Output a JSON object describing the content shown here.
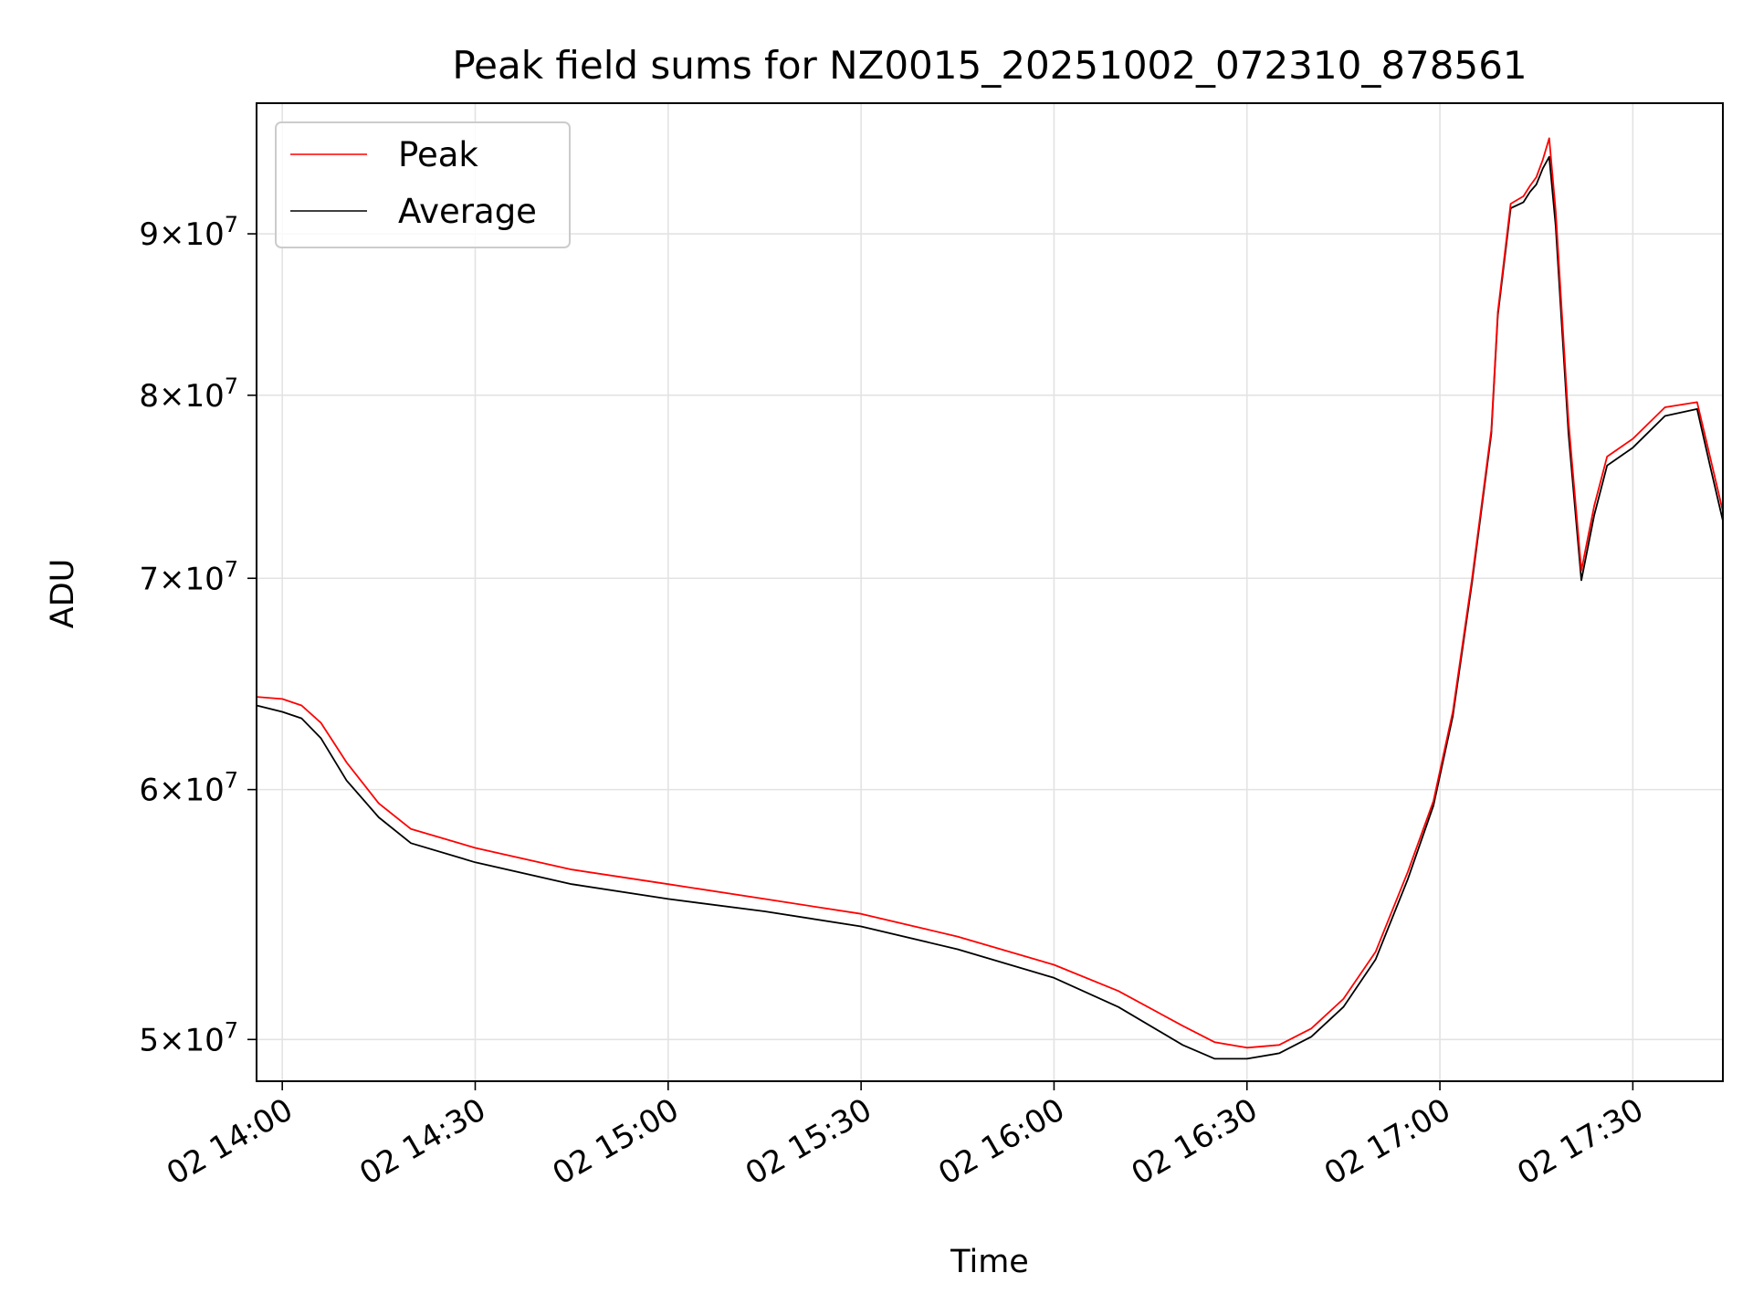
{
  "chart_data": {
    "type": "line",
    "title": "Peak field sums for NZ0015_20251002_072310_878561",
    "xlabel": "Time",
    "ylabel": "ADU",
    "yscale": "log",
    "grid": true,
    "legend_position": "top-left",
    "xlim": [
      "2025-10-02 13:56",
      "2025-10-02 17:44"
    ],
    "ylim": [
      48500000,
      99000000
    ],
    "x_ticks": [
      {
        "value": "2025-10-02 14:00",
        "label": "02 14:00"
      },
      {
        "value": "2025-10-02 14:30",
        "label": "02 14:30"
      },
      {
        "value": "2025-10-02 15:00",
        "label": "02 15:00"
      },
      {
        "value": "2025-10-02 15:30",
        "label": "02 15:30"
      },
      {
        "value": "2025-10-02 16:00",
        "label": "02 16:00"
      },
      {
        "value": "2025-10-02 16:30",
        "label": "02 16:30"
      },
      {
        "value": "2025-10-02 17:00",
        "label": "02 17:00"
      },
      {
        "value": "2025-10-02 17:30",
        "label": "02 17:30"
      }
    ],
    "y_ticks": [
      {
        "value": 50000000,
        "mantissa": "5",
        "exponent": "7"
      },
      {
        "value": 60000000,
        "mantissa": "6",
        "exponent": "7"
      },
      {
        "value": 70000000,
        "mantissa": "7",
        "exponent": "7"
      },
      {
        "value": 80000000,
        "mantissa": "8",
        "exponent": "7"
      },
      {
        "value": 90000000,
        "mantissa": "9",
        "exponent": "7"
      }
    ],
    "x": [
      "2025-10-02 13:56",
      "2025-10-02 14:00",
      "2025-10-02 14:03",
      "2025-10-02 14:06",
      "2025-10-02 14:10",
      "2025-10-02 14:15",
      "2025-10-02 14:20",
      "2025-10-02 14:30",
      "2025-10-02 14:45",
      "2025-10-02 15:00",
      "2025-10-02 15:15",
      "2025-10-02 15:30",
      "2025-10-02 15:45",
      "2025-10-02 16:00",
      "2025-10-02 16:10",
      "2025-10-02 16:20",
      "2025-10-02 16:25",
      "2025-10-02 16:30",
      "2025-10-02 16:35",
      "2025-10-02 16:40",
      "2025-10-02 16:45",
      "2025-10-02 16:50",
      "2025-10-02 16:55",
      "2025-10-02 16:59",
      "2025-10-02 17:02",
      "2025-10-02 17:05",
      "2025-10-02 17:08",
      "2025-10-02 17:09",
      "2025-10-02 17:11",
      "2025-10-02 17:13",
      "2025-10-02 17:14",
      "2025-10-02 17:15",
      "2025-10-02 17:16",
      "2025-10-02 17:17",
      "2025-10-02 17:18",
      "2025-10-02 17:20",
      "2025-10-02 17:22",
      "2025-10-02 17:24",
      "2025-10-02 17:26",
      "2025-10-02 17:30",
      "2025-10-02 17:35",
      "2025-10-02 17:40",
      "2025-10-02 17:42",
      "2025-10-02 17:44"
    ],
    "series": [
      {
        "name": "Peak",
        "color": "#ff0000",
        "values": [
          64200000,
          64100000,
          63800000,
          63000000,
          61200000,
          59400000,
          58300000,
          57500000,
          56600000,
          56000000,
          55400000,
          54800000,
          53900000,
          52800000,
          51800000,
          50500000,
          49900000,
          49700000,
          49800000,
          50400000,
          51500000,
          53300000,
          56500000,
          59500000,
          63500000,
          70000000,
          78000000,
          85000000,
          92000000,
          92500000,
          93200000,
          93800000,
          95000000,
          96500000,
          91500000,
          78500000,
          70400000,
          73800000,
          76500000,
          77500000,
          79300000,
          79600000,
          76500000,
          73500000
        ]
      },
      {
        "name": "Average",
        "color": "#000000",
        "values": [
          63800000,
          63500000,
          63200000,
          62300000,
          60400000,
          58800000,
          57700000,
          56900000,
          56000000,
          55400000,
          54900000,
          54300000,
          53400000,
          52300000,
          51200000,
          49800000,
          49300000,
          49300000,
          49500000,
          50100000,
          51200000,
          53000000,
          56200000,
          59300000,
          63300000,
          69800000,
          77800000,
          84800000,
          91700000,
          92100000,
          92800000,
          93300000,
          94400000,
          95200000,
          90500000,
          77800000,
          69900000,
          73300000,
          76000000,
          77000000,
          78800000,
          79200000,
          76000000,
          73000000
        ]
      }
    ]
  }
}
